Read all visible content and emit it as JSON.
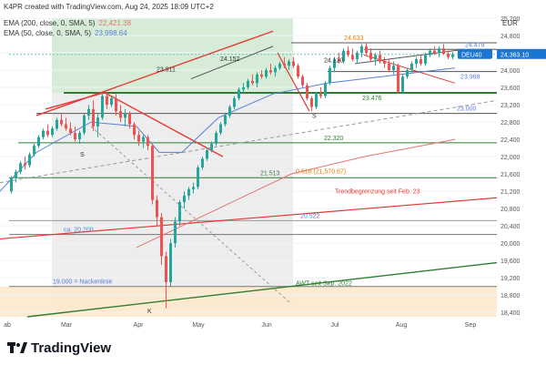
{
  "header": {
    "created": "K4PR created with TradingView.com, Aug 24, 2025 18:09 UTC+2",
    "ema200_label": "EMA (200, close, 0, SMA, 5)",
    "ema200_value": "22,421.38",
    "ema50_label": "EMA (50, close, 0, SMA, 5)",
    "ema50_value": "23,998.64"
  },
  "footer": {
    "brand": "TradingView"
  },
  "colors": {
    "ema200": "#e57373",
    "ema50": "#5b7fd6",
    "up": "#26a69a",
    "down": "#ef5350",
    "green_zone": "#c8e6c9",
    "grey_zone": "#e6e6e6",
    "orange_zone": "#fde9cc"
  },
  "chart_data": {
    "type": "candlestick",
    "symbol": "DEU40",
    "currency": "EUR",
    "last_price": "24,363.10",
    "ylim": [
      18300,
      25200
    ],
    "y_ticks": [
      "25,200",
      "24,800",
      "24,400",
      "24,000",
      "23,600",
      "23,200",
      "22,800",
      "22,400",
      "22,000",
      "21,600",
      "21,200",
      "20,800",
      "20,400",
      "20,000",
      "19,600",
      "19,200",
      "18,800",
      "18,400"
    ],
    "x_ticks": [
      "ab",
      "Mar",
      "Apr",
      "May",
      "Jun",
      "Jul",
      "Aug",
      "Sep"
    ],
    "levels": [
      {
        "value": 24633,
        "label": "24.633",
        "color": "#f57c00"
      },
      {
        "value": 24479,
        "label": "24.479",
        "color": "#5b7fd6"
      },
      {
        "value": 24152,
        "label": "24.152",
        "color": "#333333"
      },
      {
        "value": 24120,
        "label": "24.120",
        "color": "#333333"
      },
      {
        "value": 23968,
        "label": "23.968",
        "color": "#5b7fd6"
      },
      {
        "value": 23911,
        "label": "23.911",
        "color": "#333333"
      },
      {
        "value": 23476,
        "label": "23.476",
        "color": "#2e7d32"
      },
      {
        "value": 23000,
        "label": "23.000",
        "color": "#5b7fd6"
      },
      {
        "value": 22320,
        "label": "22.320",
        "color": "#2e7d32"
      },
      {
        "value": 21513,
        "label": "21.513",
        "color": "#2e7d32"
      },
      {
        "value": 21570,
        "label": "0.618 (21,570.67)",
        "color": "#f57c00"
      },
      {
        "value": 20522,
        "label": "20.522",
        "color": "#5b7fd6"
      },
      {
        "value": 20200,
        "label": "ca. 20.200",
        "color": "#5b7fd6"
      },
      {
        "value": 19000,
        "label": "19.000 = Nackenlinie",
        "color": "#5b7fd6"
      }
    ],
    "annotations": [
      {
        "label": "Trendbegrenzung seit Feb. 23",
        "color": "#e53935"
      },
      {
        "label": "AWT seit Sep. 2022",
        "color": "#2e7d32"
      },
      {
        "label": "S",
        "color": "#333333"
      },
      {
        "label": "S",
        "color": "#333333"
      },
      {
        "label": "K",
        "color": "#333333"
      }
    ],
    "candles": [
      [
        21200,
        21550,
        21150,
        21500
      ],
      [
        21500,
        21700,
        21400,
        21650
      ],
      [
        21650,
        21900,
        21600,
        21850
      ],
      [
        21850,
        22000,
        21700,
        21800
      ],
      [
        21800,
        22100,
        21750,
        22050
      ],
      [
        22050,
        22300,
        22000,
        22250
      ],
      [
        22250,
        22500,
        22200,
        22450
      ],
      [
        22450,
        22650,
        22400,
        22600
      ],
      [
        22600,
        22750,
        22450,
        22500
      ],
      [
        22500,
        22700,
        22450,
        22650
      ],
      [
        22650,
        22900,
        22600,
        22850
      ],
      [
        22850,
        23000,
        22700,
        22750
      ],
      [
        22750,
        22900,
        22600,
        22650
      ],
      [
        22650,
        22800,
        22500,
        22550
      ],
      [
        22550,
        22700,
        22350,
        22400
      ],
      [
        22400,
        22600,
        22300,
        22550
      ],
      [
        22550,
        23000,
        22500,
        22950
      ],
      [
        22950,
        23200,
        22850,
        23100
      ],
      [
        23100,
        23300,
        22600,
        22700
      ],
      [
        22700,
        23000,
        22450,
        22900
      ],
      [
        22900,
        23450,
        22850,
        23400
      ],
      [
        23400,
        23480,
        23100,
        23200
      ],
      [
        23200,
        23400,
        23150,
        23350
      ],
      [
        23350,
        23450,
        22950,
        23050
      ],
      [
        23050,
        23200,
        22800,
        22900
      ],
      [
        22900,
        23100,
        22700,
        23000
      ],
      [
        23000,
        23050,
        22650,
        22750
      ],
      [
        22750,
        22800,
        22400,
        22500
      ],
      [
        22500,
        22600,
        22250,
        22350
      ],
      [
        22350,
        22500,
        22200,
        22450
      ],
      [
        22450,
        22500,
        22150,
        22250
      ],
      [
        22250,
        22300,
        20900,
        21000
      ],
      [
        21000,
        21100,
        20400,
        20600
      ],
      [
        20600,
        20700,
        19500,
        19700
      ],
      [
        19700,
        19800,
        18500,
        19100
      ],
      [
        19100,
        20100,
        19000,
        20000
      ],
      [
        20000,
        20600,
        19900,
        20500
      ],
      [
        20500,
        21000,
        20400,
        20950
      ],
      [
        20950,
        21200,
        20800,
        21100
      ],
      [
        21100,
        21300,
        21000,
        21250
      ],
      [
        21250,
        21400,
        21150,
        21300
      ],
      [
        21300,
        21800,
        21250,
        21750
      ],
      [
        21750,
        22000,
        21700,
        21950
      ],
      [
        21950,
        22200,
        21900,
        22150
      ],
      [
        22150,
        22350,
        22100,
        22300
      ],
      [
        22300,
        22600,
        22250,
        22550
      ],
      [
        22550,
        22800,
        22500,
        22750
      ],
      [
        22750,
        23000,
        22700,
        22950
      ],
      [
        22950,
        23200,
        22900,
        23150
      ],
      [
        23150,
        23400,
        23100,
        23350
      ],
      [
        23350,
        23600,
        23300,
        23550
      ],
      [
        23550,
        23700,
        23450,
        23600
      ],
      [
        23600,
        23800,
        23550,
        23750
      ],
      [
        23750,
        23900,
        23650,
        23700
      ],
      [
        23700,
        23950,
        23600,
        23900
      ],
      [
        23900,
        24000,
        23800,
        23850
      ],
      [
        23850,
        24050,
        23800,
        24000
      ],
      [
        24000,
        24150,
        23900,
        23950
      ],
      [
        23950,
        24100,
        23850,
        24050
      ],
      [
        24050,
        24200,
        24000,
        24150
      ],
      [
        24150,
        24300,
        24050,
        24100
      ],
      [
        24100,
        24250,
        24000,
        24200
      ],
      [
        24200,
        24300,
        24050,
        24100
      ],
      [
        24100,
        24150,
        23800,
        23850
      ],
      [
        23850,
        23900,
        23600,
        23650
      ],
      [
        23650,
        23700,
        23300,
        23350
      ],
      [
        23350,
        23400,
        23050,
        23150
      ],
      [
        23150,
        23500,
        23100,
        23450
      ],
      [
        23450,
        23600,
        23350,
        23400
      ],
      [
        23400,
        23750,
        23350,
        23700
      ],
      [
        23700,
        24100,
        23650,
        24050
      ],
      [
        24050,
        24300,
        23950,
        24250
      ],
      [
        24250,
        24400,
        24150,
        24200
      ],
      [
        24200,
        24500,
        24150,
        24450
      ],
      [
        24450,
        24550,
        24300,
        24350
      ],
      [
        24350,
        24500,
        24200,
        24250
      ],
      [
        24250,
        24450,
        24150,
        24400
      ],
      [
        24400,
        24600,
        24300,
        24550
      ],
      [
        24550,
        24633,
        24350,
        24400
      ],
      [
        24400,
        24500,
        24200,
        24250
      ],
      [
        24250,
        24400,
        24100,
        24350
      ],
      [
        24350,
        24450,
        24150,
        24200
      ],
      [
        24200,
        24300,
        24050,
        24150
      ],
      [
        24150,
        24250,
        23950,
        24000
      ],
      [
        24000,
        24200,
        23900,
        24100
      ],
      [
        24100,
        24150,
        23450,
        23500
      ],
      [
        23500,
        23900,
        23450,
        23850
      ],
      [
        23850,
        24050,
        23800,
        24000
      ],
      [
        24000,
        24200,
        23950,
        24150
      ],
      [
        24150,
        24300,
        24050,
        24250
      ],
      [
        24250,
        24350,
        24100,
        24150
      ],
      [
        24150,
        24400,
        24100,
        24350
      ],
      [
        24350,
        24500,
        24300,
        24450
      ],
      [
        24450,
        24550,
        24350,
        24400
      ],
      [
        24400,
        24550,
        24300,
        24500
      ],
      [
        24500,
        24600,
        24350,
        24380
      ],
      [
        24380,
        24450,
        24250,
        24300
      ],
      [
        24300,
        24420,
        24250,
        24363
      ]
    ]
  }
}
